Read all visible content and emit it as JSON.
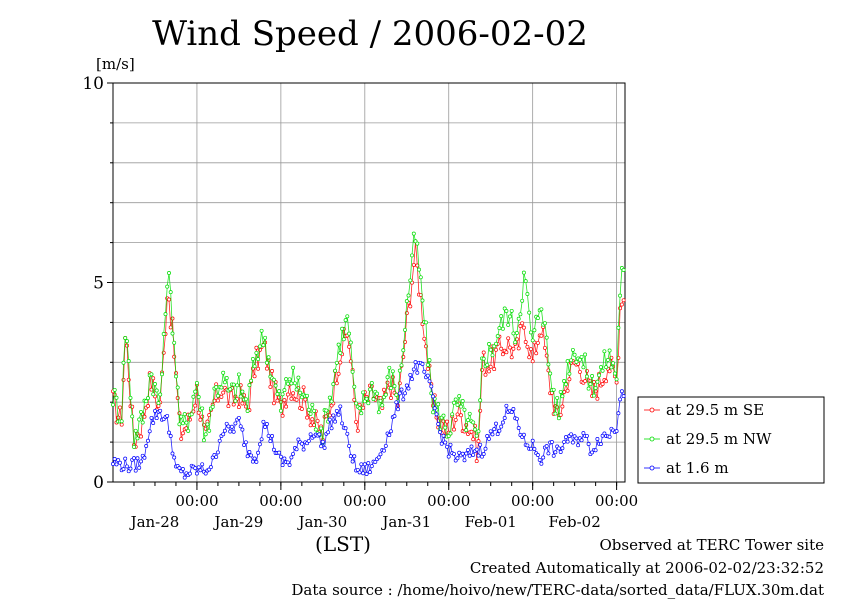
{
  "title": "Wind Speed / 2006-02-02",
  "footer": {
    "line1": "Observed at TERC Tower site",
    "line2": "Created Automatically at 2006-02-02/23:32:52",
    "line3": "Data source : /home/hoivo/new/TERC-data/sorted_data/FLUX.30m.dat"
  },
  "chart_data": {
    "type": "line",
    "title": "Wind Speed / 2006-02-02",
    "ylabel": "[m/s]",
    "xlabel": "(LST)",
    "ylim": [
      0,
      10
    ],
    "yticks": [
      "0",
      "5",
      "10"
    ],
    "xlim_days": [
      0,
      6.1
    ],
    "x_time_ticks": [
      "00:00",
      "00:00",
      "00:00",
      "00:00",
      "00:00",
      "00:00"
    ],
    "x_time_tick_days": [
      1,
      2,
      3,
      4,
      5,
      6
    ],
    "x_date_labels": [
      "Jan-28",
      "Jan-29",
      "Jan-30",
      "Jan-31",
      "Feb-01",
      "Feb-02"
    ],
    "x_date_label_days": [
      0.5,
      1.5,
      2.5,
      3.5,
      4.5,
      5.5
    ],
    "grid": true,
    "legend_position": "right",
    "series": [
      {
        "name": "at 29.5 m SE",
        "color": "#ff0000",
        "keypoints": [
          [
            0,
            2.0
          ],
          [
            0.1,
            1.5
          ],
          [
            0.15,
            3.8
          ],
          [
            0.25,
            1.0
          ],
          [
            0.35,
            1.5
          ],
          [
            0.45,
            2.6
          ],
          [
            0.55,
            1.8
          ],
          [
            0.6,
            3.0
          ],
          [
            0.65,
            5.0
          ],
          [
            0.72,
            3.5
          ],
          [
            0.8,
            1.2
          ],
          [
            0.9,
            1.5
          ],
          [
            1.0,
            2.3
          ],
          [
            1.1,
            1.0
          ],
          [
            1.2,
            2.0
          ],
          [
            1.3,
            2.4
          ],
          [
            1.4,
            2.0
          ],
          [
            1.5,
            2.2
          ],
          [
            1.6,
            1.8
          ],
          [
            1.7,
            3.0
          ],
          [
            1.8,
            3.4
          ],
          [
            1.9,
            2.4
          ],
          [
            2.0,
            1.8
          ],
          [
            2.1,
            2.5
          ],
          [
            2.2,
            2.2
          ],
          [
            2.3,
            2.0
          ],
          [
            2.4,
            1.5
          ],
          [
            2.5,
            1.2
          ],
          [
            2.6,
            2.0
          ],
          [
            2.7,
            3.2
          ],
          [
            2.8,
            3.8
          ],
          [
            2.9,
            1.5
          ],
          [
            3.0,
            2.0
          ],
          [
            3.1,
            2.2
          ],
          [
            3.2,
            1.8
          ],
          [
            3.3,
            2.5
          ],
          [
            3.4,
            2.0
          ],
          [
            3.5,
            4.0
          ],
          [
            3.6,
            5.8
          ],
          [
            3.7,
            4.0
          ],
          [
            3.8,
            2.0
          ],
          [
            3.9,
            1.5
          ],
          [
            4.0,
            1.2
          ],
          [
            4.1,
            1.8
          ],
          [
            4.2,
            1.5
          ],
          [
            4.3,
            1.2
          ],
          [
            4.35,
            0.7
          ],
          [
            4.4,
            3.0
          ],
          [
            4.5,
            3.0
          ],
          [
            4.6,
            3.3
          ],
          [
            4.7,
            3.5
          ],
          [
            4.8,
            3.2
          ],
          [
            4.9,
            4.0
          ],
          [
            5.0,
            3.0
          ],
          [
            5.1,
            4.0
          ],
          [
            5.2,
            2.5
          ],
          [
            5.3,
            1.5
          ],
          [
            5.4,
            2.5
          ],
          [
            5.5,
            3.0
          ],
          [
            5.6,
            2.8
          ],
          [
            5.7,
            2.2
          ],
          [
            5.8,
            2.5
          ],
          [
            5.9,
            3.0
          ],
          [
            6.0,
            2.5
          ],
          [
            6.05,
            4.8
          ],
          [
            6.1,
            4.5
          ]
        ]
      },
      {
        "name": "at 29.5 m NW",
        "color": "#00dd00",
        "keypoints": [
          [
            0,
            2.2
          ],
          [
            0.1,
            1.6
          ],
          [
            0.15,
            4.0
          ],
          [
            0.25,
            1.1
          ],
          [
            0.35,
            1.6
          ],
          [
            0.45,
            2.8
          ],
          [
            0.55,
            1.9
          ],
          [
            0.6,
            3.2
          ],
          [
            0.65,
            5.4
          ],
          [
            0.72,
            3.8
          ],
          [
            0.8,
            1.3
          ],
          [
            0.9,
            1.6
          ],
          [
            1.0,
            2.5
          ],
          [
            1.1,
            1.1
          ],
          [
            1.2,
            2.2
          ],
          [
            1.3,
            2.6
          ],
          [
            1.4,
            2.2
          ],
          [
            1.5,
            2.4
          ],
          [
            1.6,
            1.9
          ],
          [
            1.7,
            3.2
          ],
          [
            1.8,
            3.7
          ],
          [
            1.9,
            2.6
          ],
          [
            2.0,
            1.9
          ],
          [
            2.1,
            2.7
          ],
          [
            2.2,
            2.4
          ],
          [
            2.3,
            2.1
          ],
          [
            2.4,
            1.6
          ],
          [
            2.5,
            1.3
          ],
          [
            2.6,
            2.2
          ],
          [
            2.7,
            3.5
          ],
          [
            2.8,
            4.1
          ],
          [
            2.9,
            1.6
          ],
          [
            3.0,
            2.1
          ],
          [
            3.1,
            2.4
          ],
          [
            3.2,
            1.9
          ],
          [
            3.3,
            2.7
          ],
          [
            3.4,
            2.2
          ],
          [
            3.5,
            4.4
          ],
          [
            3.6,
            6.2
          ],
          [
            3.7,
            4.3
          ],
          [
            3.8,
            2.1
          ],
          [
            3.9,
            1.6
          ],
          [
            4.0,
            1.3
          ],
          [
            4.1,
            2.0
          ],
          [
            4.2,
            1.6
          ],
          [
            4.3,
            1.3
          ],
          [
            4.35,
            0.8
          ],
          [
            4.4,
            3.1
          ],
          [
            4.5,
            3.3
          ],
          [
            4.6,
            3.8
          ],
          [
            4.7,
            4.3
          ],
          [
            4.8,
            3.7
          ],
          [
            4.9,
            5.2
          ],
          [
            5.0,
            3.4
          ],
          [
            5.1,
            4.7
          ],
          [
            5.2,
            2.8
          ],
          [
            5.3,
            1.7
          ],
          [
            5.4,
            2.8
          ],
          [
            5.5,
            3.4
          ],
          [
            5.6,
            3.0
          ],
          [
            5.7,
            2.4
          ],
          [
            5.8,
            2.7
          ],
          [
            5.9,
            3.2
          ],
          [
            6.0,
            2.7
          ],
          [
            6.05,
            5.3
          ],
          [
            6.1,
            5.0
          ]
        ]
      },
      {
        "name": "at 1.6 m",
        "color": "#0000ff",
        "keypoints": [
          [
            0,
            0.5
          ],
          [
            0.2,
            0.4
          ],
          [
            0.35,
            0.5
          ],
          [
            0.45,
            1.5
          ],
          [
            0.55,
            1.8
          ],
          [
            0.65,
            1.5
          ],
          [
            0.7,
            1.0
          ],
          [
            0.75,
            0.3
          ],
          [
            0.85,
            0.2
          ],
          [
            1.0,
            0.3
          ],
          [
            1.1,
            0.3
          ],
          [
            1.2,
            0.5
          ],
          [
            1.3,
            1.3
          ],
          [
            1.4,
            1.3
          ],
          [
            1.5,
            1.5
          ],
          [
            1.6,
            0.8
          ],
          [
            1.7,
            0.6
          ],
          [
            1.8,
            1.5
          ],
          [
            1.9,
            1.0
          ],
          [
            2.0,
            0.5
          ],
          [
            2.1,
            0.5
          ],
          [
            2.2,
            0.9
          ],
          [
            2.3,
            1.0
          ],
          [
            2.4,
            1.3
          ],
          [
            2.5,
            0.9
          ],
          [
            2.6,
            1.5
          ],
          [
            2.7,
            1.8
          ],
          [
            2.8,
            1.0
          ],
          [
            2.9,
            0.3
          ],
          [
            3.0,
            0.3
          ],
          [
            3.1,
            0.4
          ],
          [
            3.2,
            0.8
          ],
          [
            3.3,
            1.3
          ],
          [
            3.4,
            2.0
          ],
          [
            3.5,
            2.4
          ],
          [
            3.6,
            2.9
          ],
          [
            3.7,
            2.8
          ],
          [
            3.8,
            2.2
          ],
          [
            3.9,
            1.2
          ],
          [
            4.0,
            0.8
          ],
          [
            4.1,
            0.6
          ],
          [
            4.2,
            0.6
          ],
          [
            4.3,
            0.8
          ],
          [
            4.4,
            0.8
          ],
          [
            4.5,
            1.2
          ],
          [
            4.6,
            1.4
          ],
          [
            4.7,
            1.8
          ],
          [
            4.8,
            1.6
          ],
          [
            4.85,
            1.3
          ],
          [
            4.9,
            1.0
          ],
          [
            5.0,
            0.9
          ],
          [
            5.1,
            0.6
          ],
          [
            5.2,
            0.9
          ],
          [
            5.3,
            0.7
          ],
          [
            5.4,
            1.1
          ],
          [
            5.5,
            1.0
          ],
          [
            5.6,
            1.2
          ],
          [
            5.7,
            0.8
          ],
          [
            5.8,
            1.1
          ],
          [
            5.9,
            1.2
          ],
          [
            6.0,
            1.4
          ],
          [
            6.05,
            2.4
          ],
          [
            6.1,
            2.2
          ]
        ]
      }
    ]
  }
}
